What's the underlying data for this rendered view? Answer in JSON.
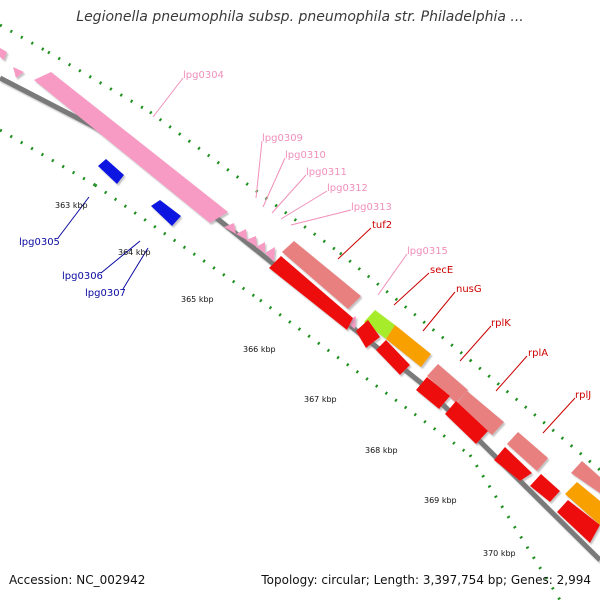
{
  "title": "Legionella pneumophila subsp. pneumophila str. Philadelphia ...",
  "footer": {
    "accession": "Accession: NC_002942",
    "topology": "Topology: circular; Length: 3,397,754 bp; Genes: 2,994"
  },
  "colors": {
    "background": "#ffffff",
    "backbone": "#7a7a7a",
    "tick_mark": "#1f8f1f",
    "pseudogene_pink": "#f79bc4",
    "cds_blue": "#0b14e0",
    "ribosomal_red": "#ee1010",
    "ribosomal_salmon": "#e88080",
    "secE_green": "#a6ec2a",
    "nusG_orange": "#f7a000",
    "label_red": "#cc0000",
    "label_blue": "#0a0aa0",
    "label_pink": "#f08fb9",
    "scale_text": "#111111"
  },
  "scale_labels": [
    "363 kbp",
    "364 kbp",
    "365 kbp",
    "366 kbp",
    "367 kbp",
    "368 kbp",
    "369 kbp",
    "370 kbp"
  ],
  "gene_labels": {
    "outer": [
      {
        "name": "lpg0304",
        "color": "pink"
      },
      {
        "name": "lpg0309",
        "color": "pink"
      },
      {
        "name": "lpg0310",
        "color": "pink"
      },
      {
        "name": "lpg0311",
        "color": "pink"
      },
      {
        "name": "lpg0312",
        "color": "pink"
      },
      {
        "name": "lpg0313",
        "color": "pink"
      },
      {
        "name": "tuf2",
        "color": "red"
      },
      {
        "name": "lpg0315",
        "color": "pink"
      },
      {
        "name": "secE",
        "color": "red"
      },
      {
        "name": "nusG",
        "color": "red"
      },
      {
        "name": "rplK",
        "color": "red"
      },
      {
        "name": "rplA",
        "color": "red"
      },
      {
        "name": "rplJ",
        "color": "red"
      }
    ],
    "inner": [
      {
        "name": "lpg0305",
        "color": "blue"
      },
      {
        "name": "lpg0306",
        "color": "blue"
      },
      {
        "name": "lpg0307",
        "color": "blue"
      }
    ]
  }
}
